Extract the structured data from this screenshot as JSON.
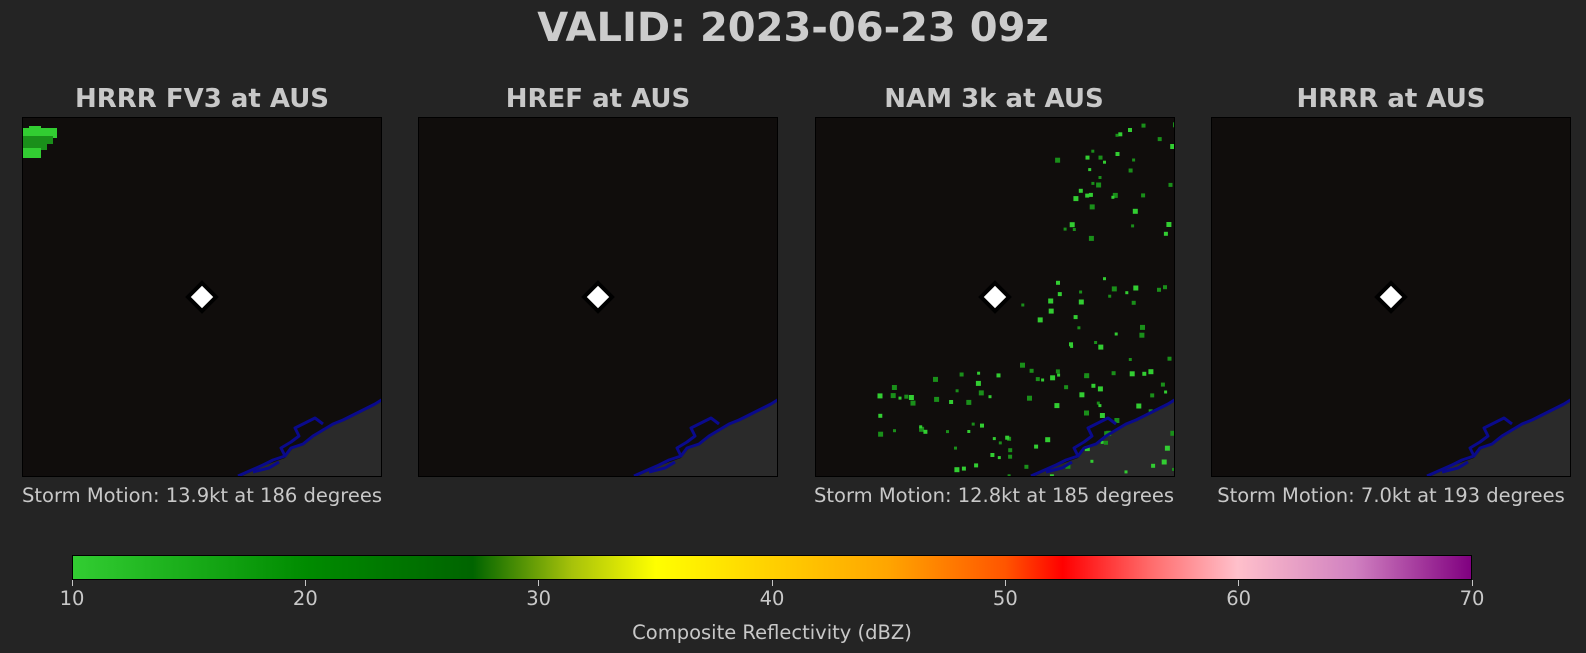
{
  "title": "VALID: 2023-06-23 09z",
  "panels": [
    {
      "title": "HRRR FV3 at AUS",
      "storm_motion": "Storm Motion: 13.9kt at 186 degrees",
      "echo": "corner-nw"
    },
    {
      "title": "HREF at AUS",
      "storm_motion": "",
      "echo": "none"
    },
    {
      "title": "NAM 3k at AUS",
      "storm_motion": "Storm Motion: 12.8kt at 185 degrees",
      "echo": "scattered"
    },
    {
      "title": "HRRR at AUS",
      "storm_motion": "Storm Motion: 7.0kt at 193 degrees",
      "echo": "none"
    }
  ],
  "colors": {
    "background": "#242424",
    "map_background": "#100d0c",
    "coastline": "#0a0a8c",
    "gulf": "#2a2a2a",
    "station_marker": "#ffffff",
    "echo_light": "#32cd32",
    "echo_dark": "#1a8f1a"
  },
  "colorbar": {
    "label": "Composite Reflectivity (dBZ)",
    "min": 10,
    "max": 70,
    "ticks": [
      "10",
      "20",
      "30",
      "40",
      "50",
      "60",
      "70"
    ]
  }
}
